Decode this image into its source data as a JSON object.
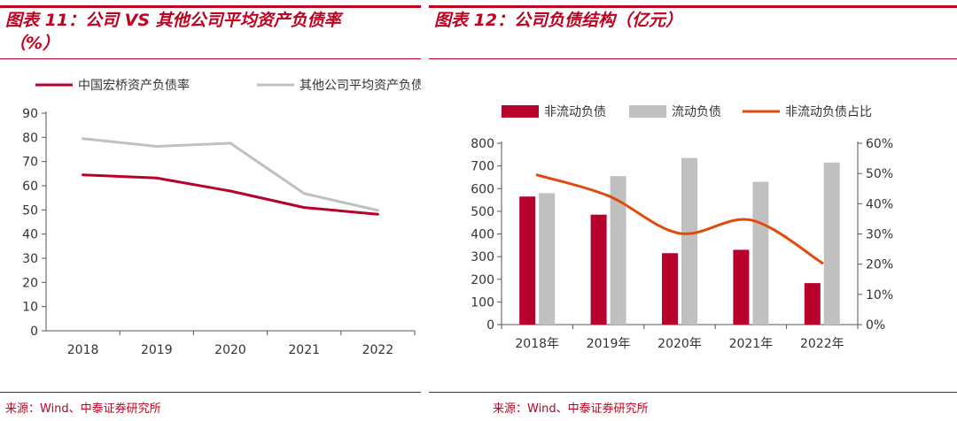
{
  "chart_data": [
    {
      "type": "line",
      "title": "图表 11：公司 VS 其他公司平均资产负债率",
      "title_line2": "（%）",
      "categories": [
        "2018",
        "2019",
        "2020",
        "2021",
        "2022"
      ],
      "yticks": [
        "0",
        "10",
        "20",
        "30",
        "40",
        "50",
        "60",
        "70",
        "80",
        "90"
      ],
      "ylim": [
        0,
        90
      ],
      "series": [
        {
          "name": "中国宏桥资产负债率",
          "color": "#b8002d",
          "values": [
            64.5,
            63.2,
            57.8,
            51.0,
            48.2
          ]
        },
        {
          "name": "其他公司平均资产负债率",
          "color": "#c0c0c0",
          "values": [
            79.5,
            76.3,
            77.6,
            56.8,
            49.8
          ]
        }
      ],
      "source": "来源：Wind、中泰证券研究所"
    },
    {
      "type": "bar",
      "title": "图表 12：公司负债结构（亿元）",
      "categories": [
        "2018年",
        "2019年",
        "2020年",
        "2021年",
        "2022年"
      ],
      "yticks_left": [
        "0",
        "100",
        "200",
        "300",
        "400",
        "500",
        "600",
        "700",
        "800"
      ],
      "yticks_right": [
        "0%",
        "10%",
        "20%",
        "30%",
        "40%",
        "50%",
        "60%"
      ],
      "ylim_left": [
        0,
        800
      ],
      "ylim_right": [
        0,
        60
      ],
      "series": [
        {
          "name": "非流动负债",
          "kind": "bar",
          "color": "#b8002d",
          "values": [
            565,
            485,
            315,
            330,
            183
          ]
        },
        {
          "name": "流动负债",
          "kind": "bar",
          "color": "#c0c0c0",
          "values": [
            580,
            655,
            735,
            630,
            715
          ]
        },
        {
          "name": "非流动负债占比",
          "kind": "line",
          "color": "#e24a0c",
          "values": [
            49.5,
            42.6,
            30.2,
            34.6,
            20.4
          ]
        }
      ],
      "source": "来源：Wind、中泰证券研究所"
    }
  ]
}
